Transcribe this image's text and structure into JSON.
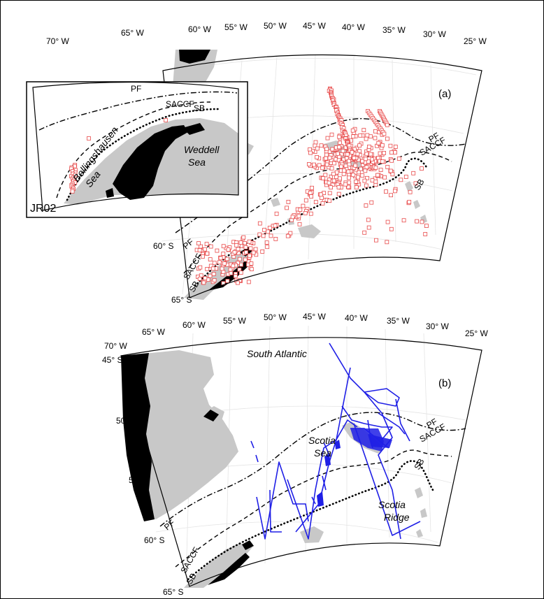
{
  "panel_a": {
    "label": "(a)",
    "lon_ticks": [
      "70° W",
      "65° W",
      "60° W",
      "55° W",
      "50° W",
      "45° W",
      "40° W",
      "35° W",
      "30° W",
      "25° W"
    ],
    "lat_ticks": [
      "60° S",
      "65° S"
    ],
    "fronts": {
      "pf": "PF",
      "saccf": "SACCF",
      "sb": "SB"
    },
    "fronts_sw": {
      "pf": "PF",
      "saccf": "SACCF",
      "sb": "SB"
    }
  },
  "inset": {
    "label": "JR02",
    "fronts": {
      "pf": "PF",
      "saccf": "SACCF",
      "sb": "SB"
    },
    "regions": {
      "bellingshausen_1": "Bellingshausen",
      "bellingshausen_2": "Sea",
      "weddell_1": "Weddell",
      "weddell_2": "Sea"
    }
  },
  "panel_b": {
    "label": "(b)",
    "lon_ticks": [
      "70° W",
      "65° W",
      "60° W",
      "55° W",
      "50° W",
      "45° W",
      "40° W",
      "35° W",
      "30° W",
      "25° W"
    ],
    "lat_ticks": [
      "45° S",
      "50° S",
      "55° S",
      "60° S",
      "65° S"
    ],
    "fronts": {
      "pf": "PF",
      "saccf": "SACCF",
      "sb": "SB"
    },
    "fronts_sw": {
      "pf": "PF",
      "saccf": "SACCF",
      "sb": "SB"
    },
    "regions": {
      "south_atlantic": "South Atlantic",
      "scotia_sea_1": "Scotia",
      "scotia_sea_2": "Sea",
      "scotia_ridge_1": "Scotia",
      "scotia_ridge_2": "Ridge"
    }
  },
  "colors": {
    "observations": "#e84a4a",
    "tracks": "#1f1fe6",
    "land": "#c8c8c8",
    "ice": "#000000"
  }
}
